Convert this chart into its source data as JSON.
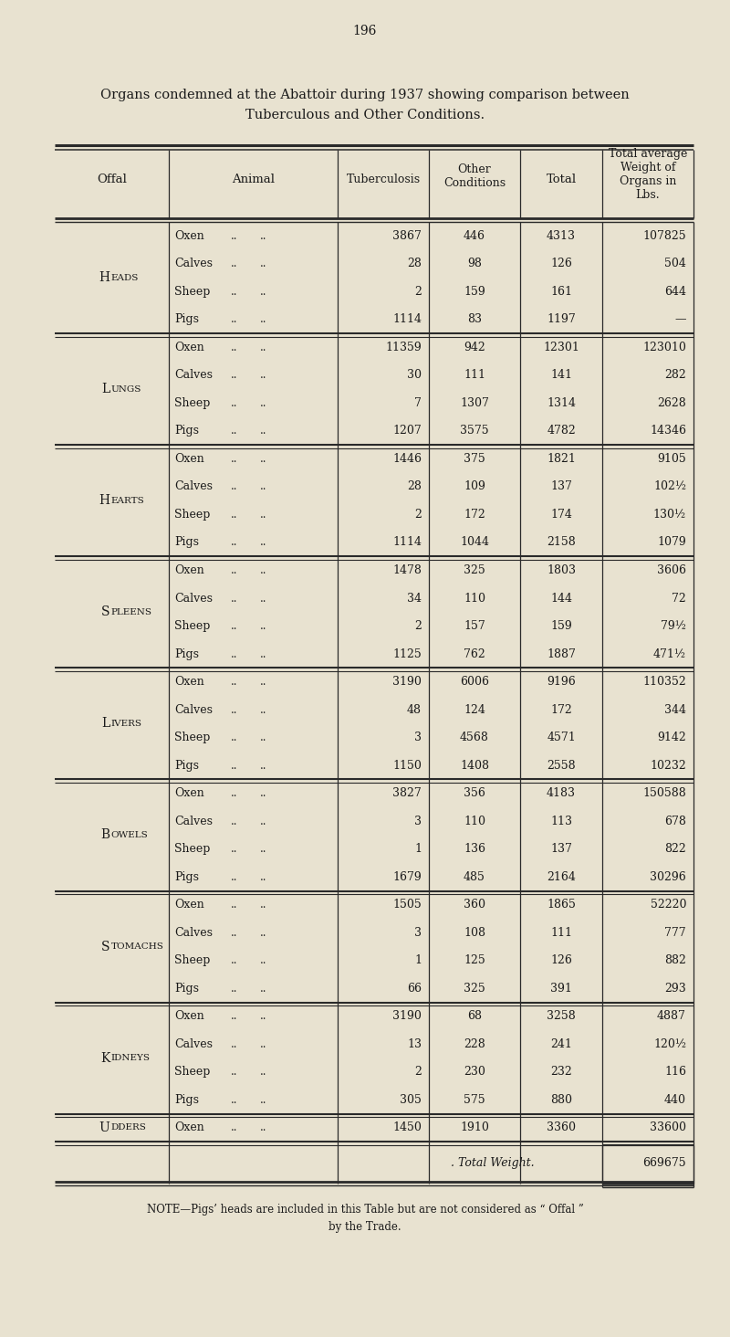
{
  "page_number": "196",
  "title_line1": "Organs condemned at the Abattoir during 1937 showing comparison between",
  "title_line2": "Tuberculous and Other Conditions.",
  "bg_color": "#e8e2d0",
  "text_color": "#1a1a1a",
  "sections": [
    {
      "offal": "Heads",
      "rows": [
        {
          "animal": "Oxen",
          "tb": "3867",
          "other": "446",
          "total": "4313",
          "avg": "107825"
        },
        {
          "animal": "Calves",
          "tb": "28",
          "other": "98",
          "total": "126",
          "avg": "504"
        },
        {
          "animal": "Sheep",
          "tb": "2",
          "other": "159",
          "total": "161",
          "avg": "644"
        },
        {
          "animal": "Pigs",
          "tb": "1114",
          "other": "83",
          "total": "1197",
          "avg": "—"
        }
      ]
    },
    {
      "offal": "Lungs",
      "rows": [
        {
          "animal": "Oxen",
          "tb": "11359",
          "other": "942",
          "total": "12301",
          "avg": "123010"
        },
        {
          "animal": "Calves",
          "tb": "30",
          "other": "111",
          "total": "141",
          "avg": "282"
        },
        {
          "animal": "Sheep",
          "tb": "7",
          "other": "1307",
          "total": "1314",
          "avg": "2628"
        },
        {
          "animal": "Pigs",
          "tb": "1207",
          "other": "3575",
          "total": "4782",
          "avg": "14346"
        }
      ]
    },
    {
      "offal": "Hearts",
      "rows": [
        {
          "animal": "Oxen",
          "tb": "1446",
          "other": "375",
          "total": "1821",
          "avg": "9105"
        },
        {
          "animal": "Calves",
          "tb": "28",
          "other": "109",
          "total": "137",
          "avg": "102½"
        },
        {
          "animal": "Sheep",
          "tb": "2",
          "other": "172",
          "total": "174",
          "avg": "130½"
        },
        {
          "animal": "Pigs",
          "tb": "1114",
          "other": "1044",
          "total": "2158",
          "avg": "1079"
        }
      ]
    },
    {
      "offal": "Spleens",
      "rows": [
        {
          "animal": "Oxen",
          "tb": "1478",
          "other": "325",
          "total": "1803",
          "avg": "3606"
        },
        {
          "animal": "Calves",
          "tb": "34",
          "other": "110",
          "total": "144",
          "avg": "72"
        },
        {
          "animal": "Sheep",
          "tb": "2",
          "other": "157",
          "total": "159",
          "avg": "79½"
        },
        {
          "animal": "Pigs",
          "tb": "1125",
          "other": "762",
          "total": "1887",
          "avg": "471½"
        }
      ]
    },
    {
      "offal": "Livers",
      "rows": [
        {
          "animal": "Oxen",
          "tb": "3190",
          "other": "6006",
          "total": "9196",
          "avg": "110352"
        },
        {
          "animal": "Calves",
          "tb": "48",
          "other": "124",
          "total": "172",
          "avg": "344"
        },
        {
          "animal": "Sheep",
          "tb": "3",
          "other": "4568",
          "total": "4571",
          "avg": "9142"
        },
        {
          "animal": "Pigs",
          "tb": "1150",
          "other": "1408",
          "total": "2558",
          "avg": "10232"
        }
      ]
    },
    {
      "offal": "Bowels",
      "rows": [
        {
          "animal": "Oxen",
          "tb": "3827",
          "other": "356",
          "total": "4183",
          "avg": "150588"
        },
        {
          "animal": "Calves",
          "tb": "3",
          "other": "110",
          "total": "113",
          "avg": "678"
        },
        {
          "animal": "Sheep",
          "tb": "1",
          "other": "136",
          "total": "137",
          "avg": "822"
        },
        {
          "animal": "Pigs",
          "tb": "1679",
          "other": "485",
          "total": "2164",
          "avg": "30296"
        }
      ]
    },
    {
      "offal": "Stomachs",
      "rows": [
        {
          "animal": "Oxen",
          "tb": "1505",
          "other": "360",
          "total": "1865",
          "avg": "52220"
        },
        {
          "animal": "Calves",
          "tb": "3",
          "other": "108",
          "total": "111",
          "avg": "777"
        },
        {
          "animal": "Sheep",
          "tb": "1",
          "other": "125",
          "total": "126",
          "avg": "882"
        },
        {
          "animal": "Pigs",
          "tb": "66",
          "other": "325",
          "total": "391",
          "avg": "293"
        }
      ]
    },
    {
      "offal": "Kidneys",
      "rows": [
        {
          "animal": "Oxen",
          "tb": "3190",
          "other": "68",
          "total": "3258",
          "avg": "4887"
        },
        {
          "animal": "Calves",
          "tb": "13",
          "other": "228",
          "total": "241",
          "avg": "120½"
        },
        {
          "animal": "Sheep",
          "tb": "2",
          "other": "230",
          "total": "232",
          "avg": "116"
        },
        {
          "animal": "Pigs",
          "tb": "305",
          "other": "575",
          "total": "880",
          "avg": "440"
        }
      ]
    },
    {
      "offal": "Udders",
      "rows": [
        {
          "animal": "Oxen",
          "tb": "1450",
          "other": "1910",
          "total": "3360",
          "avg": "33600"
        }
      ]
    }
  ],
  "total_weight_label": ". Total Weight.",
  "total_weight_value": "669675",
  "note": "NOTE—Pigs’ heads are included in this Table but are not considered as “ Offal ”\nby the Trade."
}
